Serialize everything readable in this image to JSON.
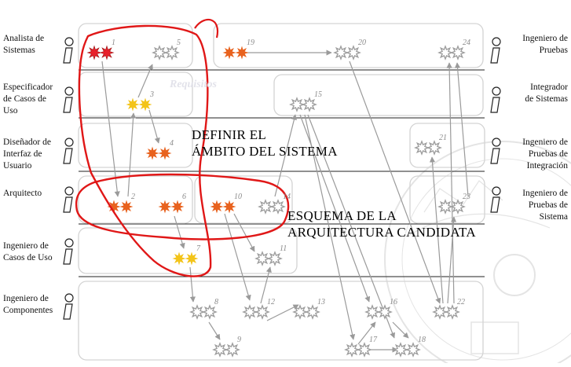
{
  "colors": {
    "red": "#e8202a",
    "orange": "#e8621e",
    "yellow": "#f3c419",
    "gray": "#9e9e9e",
    "annotation": "#e01717"
  },
  "roles_left": [
    {
      "id": "analista",
      "lines": [
        "Analista de",
        "Sistemas"
      ]
    },
    {
      "id": "especificador",
      "lines": [
        "Especificador",
        "de Casos de",
        "Uso"
      ]
    },
    {
      "id": "disenador",
      "lines": [
        "Diseñador de",
        "Interfaz de",
        "Usuario"
      ]
    },
    {
      "id": "arquitecto",
      "lines": [
        "Arquitecto"
      ]
    },
    {
      "id": "ing-casos",
      "lines": [
        "Ingeniero de",
        "Casos de Uso"
      ]
    },
    {
      "id": "ing-componentes",
      "lines": [
        "Ingeniero de",
        "Componentes"
      ]
    }
  ],
  "roles_right": [
    {
      "id": "ing-pruebas",
      "lines": [
        "Ingeniero de",
        "Pruebas"
      ]
    },
    {
      "id": "integrador",
      "lines": [
        "Integrador",
        "de Sistemas"
      ]
    },
    {
      "id": "ing-pruebas-int",
      "lines": [
        "Ingeniero de",
        "Pruebas de",
        "Integración"
      ]
    },
    {
      "id": "ing-pruebas-sis",
      "lines": [
        "Ingeniero de",
        "Pruebas de",
        "Sistema"
      ]
    }
  ],
  "activities": [
    {
      "n": "1",
      "color": "red"
    },
    {
      "n": "2",
      "color": "orange"
    },
    {
      "n": "3",
      "color": "yellow"
    },
    {
      "n": "4",
      "color": "orange"
    },
    {
      "n": "5",
      "color": "gray"
    },
    {
      "n": "6",
      "color": "orange"
    },
    {
      "n": "7",
      "color": "yellow"
    },
    {
      "n": "8",
      "color": "gray"
    },
    {
      "n": "9",
      "color": "gray"
    },
    {
      "n": "10",
      "color": "orange"
    },
    {
      "n": "11",
      "color": "gray"
    },
    {
      "n": "12",
      "color": "gray"
    },
    {
      "n": "13",
      "color": "gray"
    },
    {
      "n": "14",
      "color": "gray"
    },
    {
      "n": "15",
      "color": "gray"
    },
    {
      "n": "16",
      "color": "gray"
    },
    {
      "n": "17",
      "color": "gray"
    },
    {
      "n": "18",
      "color": "gray"
    },
    {
      "n": "19",
      "color": "orange"
    },
    {
      "n": "20",
      "color": "gray"
    },
    {
      "n": "21",
      "color": "gray"
    },
    {
      "n": "22",
      "color": "gray"
    },
    {
      "n": "23",
      "color": "gray"
    },
    {
      "n": "24",
      "color": "gray"
    }
  ],
  "annotations": {
    "ambito": [
      "DEFINIR EL",
      "ÁMBITO DEL SISTEMA"
    ],
    "arquitectura": [
      "ESQUEMA DE LA",
      "ARQUITECTURA CANDIDATA"
    ]
  },
  "watermark": {
    "requisitos": "Requisitos"
  }
}
